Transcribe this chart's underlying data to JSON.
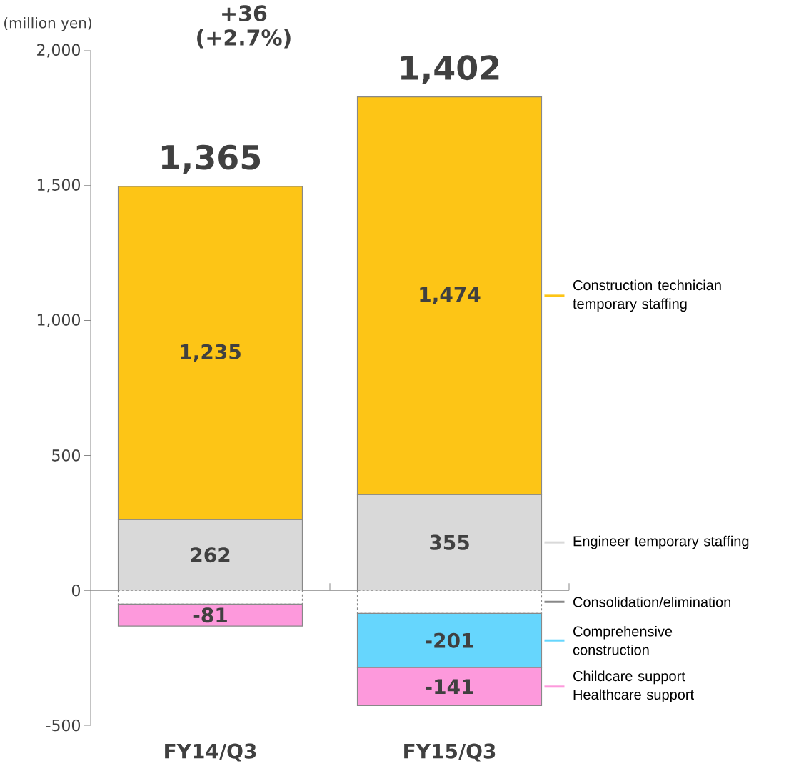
{
  "chart_data": {
    "type": "bar",
    "stacked": true,
    "ylabel": "(million yen)",
    "categories": [
      "FY14/Q3",
      "FY15/Q3"
    ],
    "series": [
      {
        "name": "Engineer temporary staffing",
        "color": "#d9d9d9",
        "values": [
          262,
          355
        ],
        "value_labels": [
          "262",
          "355"
        ]
      },
      {
        "name": "Construction technician temporary staffing",
        "color": "#fdc516",
        "values": [
          1235,
          1474
        ],
        "value_labels": [
          "1,235",
          "1,474"
        ]
      },
      {
        "name": "Consolidation/elimination",
        "color": "#ffffff",
        "line_style": "dashed",
        "values": [
          -51,
          -85
        ],
        "value_labels": [
          null,
          null
        ]
      },
      {
        "name": "Comprehensive  construction",
        "color": "#66d6fd",
        "values": [
          null,
          -201
        ],
        "value_labels": [
          null,
          "-201"
        ]
      },
      {
        "name": "Childcare support Healthcare support",
        "color": "#fd99dc",
        "values": [
          -81,
          -141
        ],
        "value_labels": [
          "-81",
          "-141"
        ]
      }
    ],
    "totals": [
      "1,365",
      "1,402"
    ],
    "annotations": [
      "+36 (+2.7%)"
    ],
    "ylim": [
      -500,
      2000
    ],
    "yticks": [
      {
        "value": -500,
        "label": "-500"
      },
      0,
      500,
      {
        "value": 1000,
        "label": "1,000"
      },
      {
        "value": 1500,
        "label": "1,500"
      },
      {
        "value": 2000,
        "label": "2,000"
      }
    ],
    "ref_lines": [
      {
        "axis": "y",
        "value": 0,
        "color": "#888888"
      }
    ],
    "legend": "right"
  }
}
